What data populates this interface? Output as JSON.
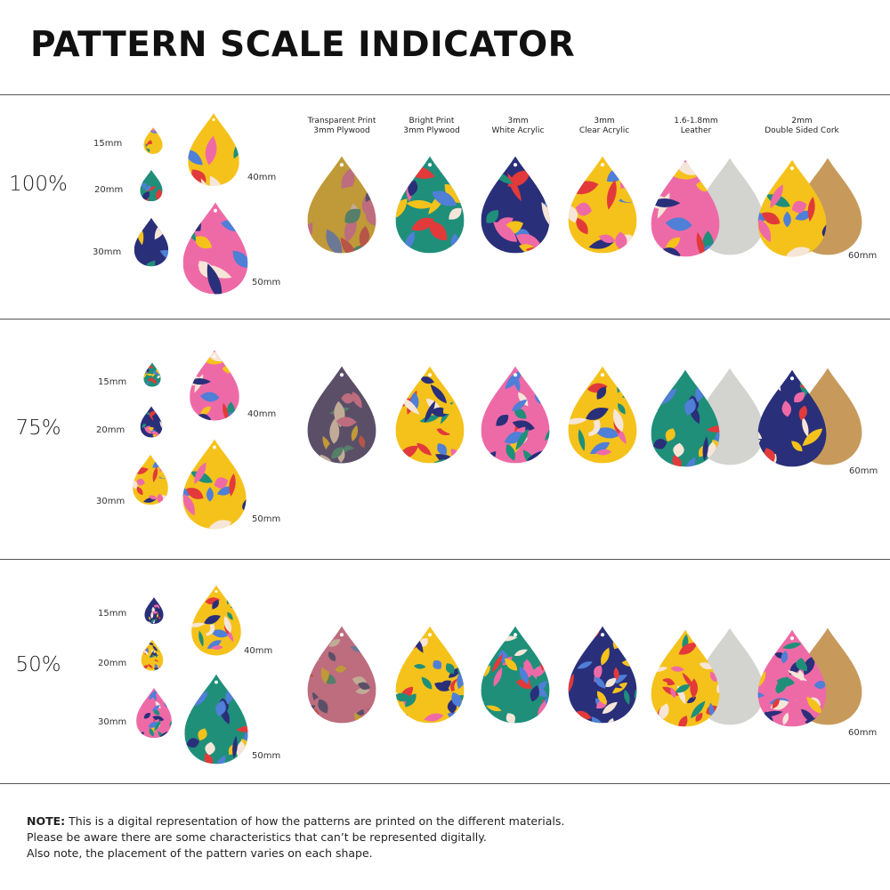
{
  "page_title": "PATTERN SCALE INDICATOR",
  "materials": [
    {
      "line1": "Transparent Print",
      "line2": "3mm Plywood"
    },
    {
      "line1": "Bright Print",
      "line2": "3mm Plywood"
    },
    {
      "line1": "3mm",
      "line2": "White Acrylic"
    },
    {
      "line1": "3mm",
      "line2": "Clear Acrylic"
    },
    {
      "line1": "1.6-1.8mm",
      "line2": "Leather"
    },
    {
      "line1": "2mm",
      "line2": "Double Sided Cork"
    }
  ],
  "size_labels": {
    "s15": "15mm",
    "s20": "20mm",
    "s30": "30mm",
    "s40": "40mm",
    "s50": "50mm",
    "s60": "60mm"
  },
  "scales": [
    {
      "label": "100%"
    },
    {
      "label": "75%"
    },
    {
      "label": "50%"
    }
  ],
  "note": {
    "bold": "NOTE:",
    "line1": " This is a digital representation of how the patterns are printed on the different materials.",
    "line2": "Please be aware there are some characteristics that can’t be represented digitally.",
    "line3": "Also note, the placement of the pattern varies on each shape."
  },
  "colors": {
    "yellow": "#f5c21b",
    "navy": "#2a2f7a",
    "teal": "#1f8f7a",
    "pink": "#ee6aa7",
    "red": "#e23a3a",
    "blue": "#4f7fd6",
    "cream": "#f6e6d8",
    "cork": "#c79a5c",
    "suede": "#d3d3d0",
    "plywood": "#8b6f55"
  }
}
